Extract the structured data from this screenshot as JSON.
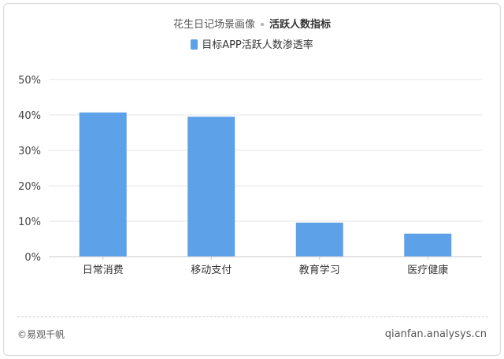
{
  "header": {
    "title": "花生日记场景画像",
    "subtitle": "活跃人数指标"
  },
  "legend": {
    "label": "目标APP活跃人数渗透率",
    "color": "#5da1e8"
  },
  "chart_data": {
    "type": "bar",
    "categories": [
      "日常消费",
      "移动支付",
      "教育学习",
      "医疗健康"
    ],
    "series": [
      {
        "name": "目标APP活跃人数渗透率",
        "values": [
          40.7,
          39.5,
          9.6,
          6.5
        ]
      }
    ],
    "ylim": [
      0,
      50
    ],
    "yticks": [
      "0%",
      "10%",
      "20%",
      "30%",
      "40%",
      "50%"
    ],
    "grid": true,
    "legend_position": "top-center",
    "bar_color": "#5da1e8",
    "grid_color": "#e6e6e6"
  },
  "footer": {
    "copyright": "©易观千帆",
    "website": "qianfan.analysys.cn"
  }
}
